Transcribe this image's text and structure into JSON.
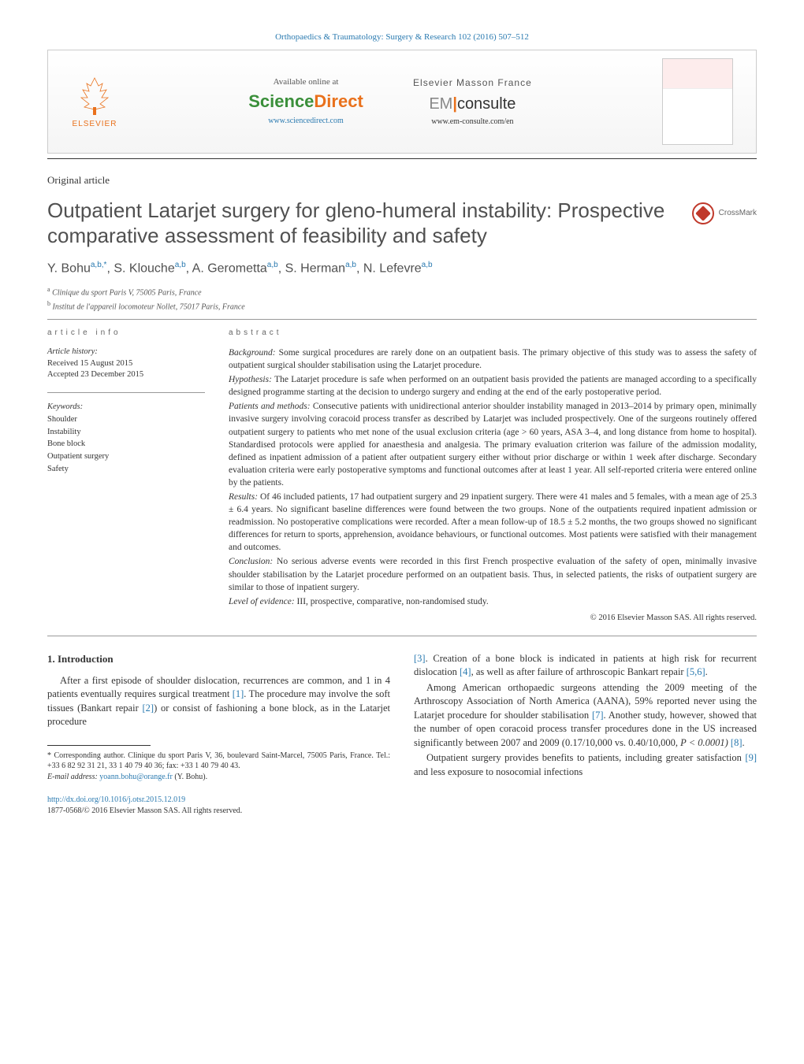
{
  "journal_header": "Orthopaedics & Traumatology: Surgery & Research 102 (2016) 507–512",
  "banner": {
    "elsevier_label": "ELSEVIER",
    "available_text": "Available online at",
    "sciencedirect_science": "Science",
    "sciencedirect_direct": "Direct",
    "sd_url": "www.sciencedirect.com",
    "masson_text": "Elsevier Masson France",
    "em_prefix": "EM",
    "em_consulte": "consulte",
    "em_url": "www.em-consulte.com/en"
  },
  "article_type": "Original article",
  "title": "Outpatient Latarjet surgery for gleno-humeral instability: Prospective comparative assessment of feasibility and safety",
  "crossmark_label": "CrossMark",
  "authors_html": "Y. Bohu<sup>a,b,*</sup>, S. Klouche<sup>a,b</sup>, A. Gerometta<sup>a,b</sup>, S. Herman<sup>a,b</sup>, N. Lefevre<sup>a,b</sup>",
  "affiliations": {
    "a": "Clinique du sport Paris V, 75005 Paris, France",
    "b": "Institut de l'appareil locomoteur Nollet, 75017 Paris, France"
  },
  "info": {
    "section_head": "article info",
    "history_label": "Article history:",
    "received": "Received 15 August 2015",
    "accepted": "Accepted 23 December 2015",
    "keywords_label": "Keywords:",
    "keywords": [
      "Shoulder",
      "Instability",
      "Bone block",
      "Outpatient surgery",
      "Safety"
    ]
  },
  "abstract": {
    "section_head": "abstract",
    "paragraphs": [
      {
        "label": "Background:",
        "text": " Some surgical procedures are rarely done on an outpatient basis. The primary objective of this study was to assess the safety of outpatient surgical shoulder stabilisation using the Latarjet procedure."
      },
      {
        "label": "Hypothesis:",
        "text": " The Latarjet procedure is safe when performed on an outpatient basis provided the patients are managed according to a specifically designed programme starting at the decision to undergo surgery and ending at the end of the early postoperative period."
      },
      {
        "label": "Patients and methods:",
        "text": " Consecutive patients with unidirectional anterior shoulder instability managed in 2013–2014 by primary open, minimally invasive surgery involving coracoid process transfer as described by Latarjet was included prospectively. One of the surgeons routinely offered outpatient surgery to patients who met none of the usual exclusion criteria (age > 60 years, ASA 3–4, and long distance from home to hospital). Standardised protocols were applied for anaesthesia and analgesia. The primary evaluation criterion was failure of the admission modality, defined as inpatient admission of a patient after outpatient surgery either without prior discharge or within 1 week after discharge. Secondary evaluation criteria were early postoperative symptoms and functional outcomes after at least 1 year. All self-reported criteria were entered online by the patients."
      },
      {
        "label": "Results:",
        "text": " Of 46 included patients, 17 had outpatient surgery and 29 inpatient surgery. There were 41 males and 5 females, with a mean age of 25.3 ± 6.4 years. No significant baseline differences were found between the two groups. None of the outpatients required inpatient admission or readmission. No postoperative complications were recorded. After a mean follow-up of 18.5 ± 5.2 months, the two groups showed no significant differences for return to sports, apprehension, avoidance behaviours, or functional outcomes. Most patients were satisfied with their management and outcomes."
      },
      {
        "label": "Conclusion:",
        "text": " No serious adverse events were recorded in this first French prospective evaluation of the safety of open, minimally invasive shoulder stabilisation by the Latarjet procedure performed on an outpatient basis. Thus, in selected patients, the risks of outpatient surgery are similar to those of inpatient surgery."
      },
      {
        "label": "Level of evidence:",
        "text": " III, prospective, comparative, non-randomised study."
      }
    ],
    "copyright": "© 2016 Elsevier Masson SAS. All rights reserved."
  },
  "body": {
    "heading": "1. Introduction",
    "p1_a": "After a first episode of shoulder dislocation, recurrences are common, and 1 in 4 patients eventually requires surgical treatment ",
    "p1_ref1": "[1]",
    "p1_b": ". The procedure may involve the soft tissues (Bankart repair ",
    "p1_ref2": "[2]",
    "p1_c": ") or consist of fashioning a bone block, as in the Latarjet procedure ",
    "p2_ref3": "[3]",
    "p2_a": ". Creation of a bone block is indicated in patients at high risk for recurrent dislocation ",
    "p2_ref4": "[4]",
    "p2_b": ", as well as after failure of arthroscopic Bankart repair ",
    "p2_ref56": "[5,6]",
    "p2_c": ".",
    "p3_a": "Among American orthopaedic surgeons attending the 2009 meeting of the Arthroscopy Association of North America (AANA), 59% reported never using the Latarjet procedure for shoulder stabilisation ",
    "p3_ref7": "[7]",
    "p3_b": ". Another study, however, showed that the number of open coracoid process transfer procedures done in the US increased significantly between 2007 and 2009 (0.17/10,000 vs. 0.40/10,000, ",
    "p3_c": "P < 0.0001) ",
    "p3_ref8": "[8]",
    "p3_d": ".",
    "p4_a": "Outpatient surgery provides benefits to patients, including greater satisfaction ",
    "p4_ref9": "[9]",
    "p4_b": " and less exposure to nosocomial infections"
  },
  "footnotes": {
    "corr": "* Corresponding author. Clinique du sport Paris V, 36, boulevard Saint-Marcel, 75005 Paris, France. Tel.: +33 6 82 92 31 21, 33 1 40 79 40 36; fax: +33 1 40 79 40 43.",
    "email_label": "E-mail address:",
    "email": "yoann.bohu@orange.fr",
    "email_person": " (Y. Bohu)."
  },
  "doi": "http://dx.doi.org/10.1016/j.otsr.2015.12.019",
  "rights": "1877-0568/© 2016 Elsevier Masson SAS. All rights reserved.",
  "colors": {
    "link": "#2a7ab0",
    "orange": "#e9711c",
    "green": "#3a8f3a",
    "text": "#333333",
    "heading_gray": "#505050"
  }
}
